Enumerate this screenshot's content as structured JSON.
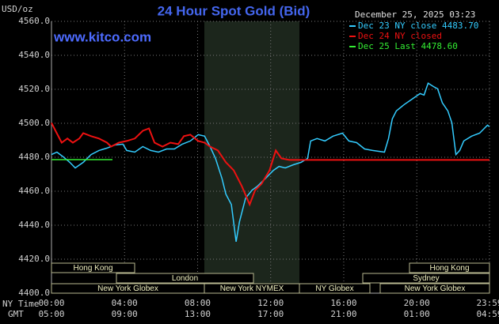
{
  "chart_data": {
    "type": "line",
    "title": "24 Hour Spot Gold (Bid)",
    "y_label": "USD/oz",
    "watermark": "www.kitco.com",
    "timestamp": "December 25, 2025 03:23",
    "x_label": "NY Time",
    "x2_label": "GMT",
    "xlim": [
      0,
      23.98
    ],
    "xticks": [
      {
        "value": 0,
        "label": "00:00"
      },
      {
        "value": 4,
        "label": "04:00"
      },
      {
        "value": 8,
        "label": "08:00"
      },
      {
        "value": 12,
        "label": "12:00"
      },
      {
        "value": 16,
        "label": "16:00"
      },
      {
        "value": 20,
        "label": "20:00"
      },
      {
        "value": 23.98,
        "label": "23:59"
      }
    ],
    "gmt_labels": [
      "05:00",
      "09:00",
      "13:00",
      "17:00",
      "21:00",
      "01:00",
      "04:59"
    ],
    "ylim": [
      4400,
      4560
    ],
    "yticks": [
      {
        "value": 4400,
        "label": "4400.0"
      },
      {
        "value": 4420,
        "label": "4420.0"
      },
      {
        "value": 4440,
        "label": "4440.0"
      },
      {
        "value": 4460,
        "label": "4460.0"
      },
      {
        "value": 4480,
        "label": "4480.0"
      },
      {
        "value": 4500,
        "label": "4500.0"
      },
      {
        "value": 4520,
        "label": "4520.0"
      },
      {
        "value": 4540,
        "label": "4540.0"
      },
      {
        "value": 4560,
        "label": "4560.0"
      }
    ],
    "grid": true,
    "legend_position": "top-right",
    "series": [
      {
        "name": "Dec 23 NY close 4483.70",
        "color": "#33ccff",
        "x": [
          0,
          0.3,
          0.65,
          1.0,
          1.3,
          1.74,
          2.17,
          2.6,
          3.04,
          3.47,
          3.91,
          4.12,
          4.56,
          5.0,
          5.43,
          5.86,
          6.3,
          6.73,
          7.16,
          7.6,
          8.03,
          8.38,
          8.68,
          8.98,
          9.33,
          9.55,
          9.85,
          10.11,
          10.29,
          10.63,
          10.98,
          11.28,
          11.72,
          12.15,
          12.46,
          12.8,
          13.24,
          13.67,
          14.02,
          14.19,
          14.54,
          14.97,
          15.41,
          15.93,
          16.28,
          16.71,
          17.14,
          17.58,
          18.23,
          18.45,
          18.66,
          18.88,
          19.31,
          19.75,
          20.18,
          20.4,
          20.62,
          20.96,
          21.14,
          21.4,
          21.7,
          21.92,
          22.14,
          22.35,
          22.57,
          23.0,
          23.44,
          23.87,
          23.98
        ],
        "values": [
          4481.6,
          4483.0,
          4480.2,
          4477.0,
          4473.7,
          4477.0,
          4481.6,
          4484.0,
          4485.4,
          4487.2,
          4487.7,
          4484.0,
          4483.0,
          4486.3,
          4484.0,
          4483.0,
          4484.9,
          4484.9,
          4487.7,
          4489.6,
          4493.3,
          4492.4,
          4486.3,
          4479.3,
          4467.6,
          4458.3,
          4452.2,
          4430.3,
          4442.0,
          4456.0,
          4460.6,
          4463.0,
          4467.6,
          4472.3,
          4474.6,
          4473.7,
          4475.6,
          4477.0,
          4479.3,
          4489.6,
          4491.0,
          4489.6,
          4492.4,
          4494.2,
          4489.6,
          4488.6,
          4484.9,
          4484.0,
          4483.0,
          4491.0,
          4502.6,
          4507.3,
          4511.0,
          4514.3,
          4517.5,
          4516.6,
          4523.6,
          4521.3,
          4520.3,
          4512.0,
          4507.3,
          4500.3,
          4481.6,
          4484.0,
          4489.6,
          4492.4,
          4494.2,
          4498.9,
          4498.0
        ]
      },
      {
        "name": "Dec 24 NY closed",
        "color": "#ee1111",
        "x": [
          0,
          0.22,
          0.56,
          0.87,
          1.17,
          1.52,
          1.74,
          2.17,
          2.6,
          3.04,
          3.26,
          3.69,
          4.12,
          4.56,
          5.0,
          5.34,
          5.64,
          6.08,
          6.51,
          6.94,
          7.25,
          7.6,
          8.03,
          8.38,
          8.68,
          9.11,
          9.55,
          9.98,
          10.42,
          10.85,
          11.15,
          11.5,
          11.94,
          12.28,
          12.59,
          13.02,
          18.0,
          23.98
        ],
        "values": [
          4500.3,
          4495.6,
          4488.6,
          4491.0,
          4488.6,
          4491.0,
          4494.2,
          4492.4,
          4491.0,
          4488.6,
          4486.3,
          4488.6,
          4489.6,
          4491.0,
          4495.6,
          4497.0,
          4488.6,
          4486.3,
          4488.6,
          4487.7,
          4492.4,
          4493.3,
          4489.6,
          4488.6,
          4486.3,
          4484.0,
          4477.0,
          4472.3,
          4463.0,
          4452.2,
          4460.6,
          4464.4,
          4472.3,
          4484.0,
          4479.3,
          4478.4,
          4478.4,
          4478.4
        ]
      },
      {
        "name": "Dec 25 Last 4478.60",
        "color": "#33ee33",
        "x": [
          0,
          1.5,
          3.34
        ],
        "values": [
          4478.6,
          4478.6,
          4478.6
        ]
      }
    ],
    "sessions": [
      "Hong Kong",
      "Hong Kong",
      "London",
      "Sydney",
      "New York Globex",
      "New York NYMEX",
      "NY Globex",
      "New York Globex"
    ]
  }
}
